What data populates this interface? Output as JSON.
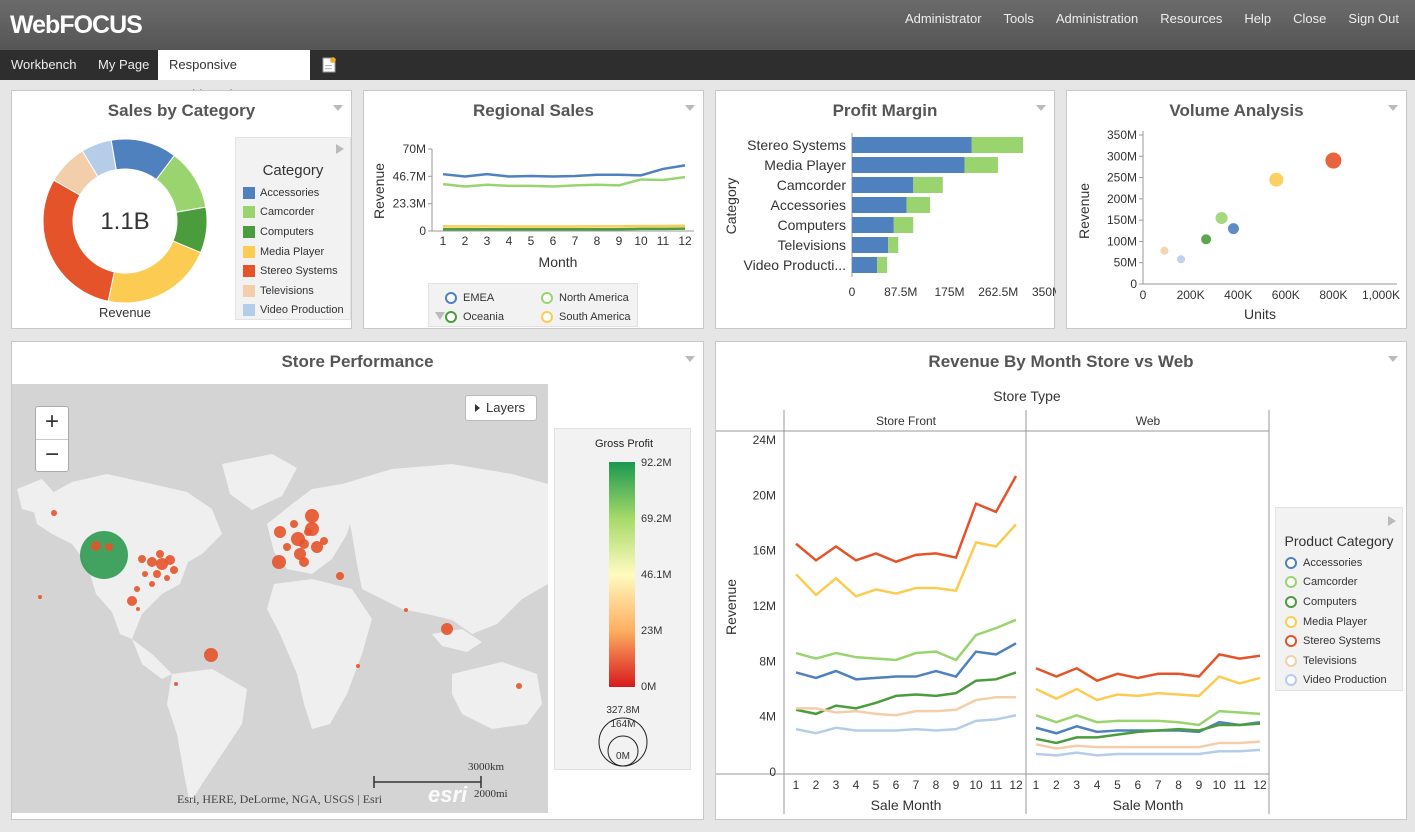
{
  "app": {
    "logo": "WebFOCUS",
    "nav": [
      "Administrator",
      "Tools",
      "Administration",
      "Resources",
      "Help",
      "Close",
      "Sign Out"
    ],
    "tabs": [
      "Workbench",
      "My Page",
      "Responsive Dashboard"
    ],
    "active_tab": 2
  },
  "sales_by_category": {
    "title": "Sales by Category",
    "center_value": "1.1B",
    "caption": "Revenue",
    "legend_title": "Category",
    "items": [
      {
        "label": "Accessories",
        "color": "#4e81bd",
        "share": 0.13
      },
      {
        "label": "Camcorder",
        "color": "#9ad46f",
        "share": 0.12
      },
      {
        "label": "Computers",
        "color": "#4a9c3c",
        "share": 0.09
      },
      {
        "label": "Media Player",
        "color": "#fccb52",
        "share": 0.22
      },
      {
        "label": "Stereo Systems",
        "color": "#e4532a",
        "share": 0.3
      },
      {
        "label": "Televisions",
        "color": "#f2cfaa",
        "share": 0.08
      },
      {
        "label": "Video Production",
        "color": "#b6cde9",
        "share": 0.06
      }
    ]
  },
  "regional_sales": {
    "title": "Regional Sales",
    "chart_data": {
      "type": "line",
      "xlabel": "Month",
      "ylabel": "Revenue",
      "x": [
        1,
        2,
        3,
        4,
        5,
        6,
        7,
        8,
        9,
        10,
        11,
        12
      ],
      "yticks": [
        "0",
        "23.3M",
        "46.7M",
        "70M"
      ],
      "ylim": [
        0,
        70
      ],
      "series": [
        {
          "name": "EMEA",
          "color": "#4e81bd",
          "values": [
            48.5,
            46.5,
            48.5,
            46.5,
            47,
            46.5,
            47,
            48,
            48,
            47.5,
            53,
            56
          ]
        },
        {
          "name": "North America",
          "color": "#9ad46f",
          "values": [
            40,
            38,
            39.5,
            38.5,
            38.5,
            38,
            39,
            39.5,
            39,
            44,
            43.5,
            46
          ]
        },
        {
          "name": "Oceania",
          "color": "#4a9c3c",
          "values": [
            1.5,
            1.5,
            1.5,
            1.5,
            1.5,
            1.5,
            1.5,
            1.5,
            1.5,
            1.8,
            1.8,
            2
          ]
        },
        {
          "name": "South America",
          "color": "#fccb52",
          "values": [
            4,
            3.8,
            4,
            3.8,
            3.8,
            3.8,
            3.8,
            3.9,
            3.9,
            4.2,
            4.3,
            4.5
          ]
        }
      ]
    }
  },
  "profit_margin": {
    "title": "Profit Margin",
    "chart_data": {
      "type": "bar",
      "ylabel": "Category",
      "xticks": [
        "0",
        "87.5M",
        "175M",
        "262.5M",
        "350M"
      ],
      "xlim": [
        0,
        350
      ],
      "categories": [
        "Stereo Systems",
        "Media Player",
        "Camcorder",
        "Accessories",
        "Computers",
        "Televisions",
        "Video Producti..."
      ],
      "series": [
        {
          "color": "#4e81bd",
          "values": [
            215,
            202,
            110,
            98,
            75,
            65,
            45
          ]
        },
        {
          "color": "#9ad46f",
          "values": [
            92,
            60,
            53,
            42,
            35,
            18,
            18
          ]
        }
      ]
    }
  },
  "volume_analysis": {
    "title": "Volume Analysis",
    "chart_data": {
      "type": "scatter",
      "xlabel": "Units",
      "ylabel": "Revenue",
      "xticks": [
        "0",
        "200K",
        "400K",
        "600K",
        "800K",
        "1,000K"
      ],
      "yticks": [
        "0",
        "50M",
        "100M",
        "150M",
        "200M",
        "250M",
        "300M",
        "350M"
      ],
      "xlim": [
        0,
        1000
      ],
      "ylim": [
        0,
        350
      ],
      "points": [
        {
          "x": 800,
          "y": 290,
          "color": "#e4532a",
          "r": 8
        },
        {
          "x": 560,
          "y": 245,
          "color": "#fccb52",
          "r": 7
        },
        {
          "x": 330,
          "y": 155,
          "color": "#9ad46f",
          "r": 6
        },
        {
          "x": 380,
          "y": 130,
          "color": "#4e81bd",
          "r": 5.5
        },
        {
          "x": 265,
          "y": 105,
          "color": "#4a9c3c",
          "r": 5
        },
        {
          "x": 90,
          "y": 78,
          "color": "#f2cfaa",
          "r": 4
        },
        {
          "x": 160,
          "y": 58,
          "color": "#b6cde9",
          "r": 4
        }
      ]
    }
  },
  "store_performance": {
    "title": "Store Performance",
    "layers_label": "Layers",
    "zoom_in": "+",
    "zoom_out": "−",
    "attribution": "Esri, HERE, DeLorme, NGA, USGS | Esri",
    "esri": "esri",
    "scale_km": "3000km",
    "scale_mi": "2000mi",
    "legend_title": "Gross Profit",
    "legend_ticks": [
      "92.2M",
      "69.2M",
      "46.1M",
      "23M",
      "0M"
    ],
    "size_legend": [
      "327.8M",
      "164M",
      "0M"
    ]
  },
  "revenue_by_month": {
    "title": "Revenue By Month Store vs Web",
    "chart_data": {
      "type": "line",
      "facet_title": "Store Type",
      "facets": [
        "Store Front",
        "Web"
      ],
      "xlabel": "Sale Month",
      "ylabel": "Revenue",
      "x": [
        1,
        2,
        3,
        4,
        5,
        6,
        7,
        8,
        9,
        10,
        11,
        12
      ],
      "yticks": [
        "0",
        "4M",
        "8M",
        "12M",
        "16M",
        "20M",
        "24M"
      ],
      "ylim": [
        0,
        24
      ],
      "legend_title": "Product Category",
      "series": [
        {
          "name": "Accessories",
          "color": "#4e81bd",
          "store": [
            7.2,
            6.8,
            7.3,
            6.7,
            6.8,
            6.9,
            6.9,
            7.3,
            6.9,
            8.7,
            8.5,
            9.3
          ],
          "web": [
            3.2,
            2.8,
            3.3,
            2.9,
            3,
            3,
            3,
            3,
            2.9,
            3.6,
            3.4,
            3.6
          ]
        },
        {
          "name": "Camcorder",
          "color": "#9ad46f",
          "store": [
            8.6,
            8.2,
            8.6,
            8.3,
            8.2,
            8.1,
            8.6,
            8.7,
            8.1,
            9.9,
            10.4,
            11
          ]
        },
        {
          "name": "Computers",
          "color": "#4a9c3c",
          "store": [
            4.5,
            4.2,
            4.8,
            4.6,
            5,
            5.5,
            5.6,
            5.5,
            5.7,
            6.6,
            6.7,
            7.2
          ],
          "web": [
            2.4,
            2.1,
            2.5,
            2.5,
            2.7,
            2.9,
            3,
            3.1,
            3,
            3.4,
            3.4,
            3.5
          ]
        },
        {
          "name": "Media Player",
          "color": "#fccb52",
          "store": [
            14.3,
            12.8,
            14,
            12.7,
            13.2,
            12.9,
            13.3,
            13.3,
            13.1,
            16.6,
            16.3,
            17.9
          ],
          "web": [
            6,
            5.3,
            6,
            5.2,
            5.6,
            5.5,
            5.7,
            5.6,
            5.5,
            6.9,
            6.4,
            6.8
          ]
        },
        {
          "name": "Stereo Systems",
          "color": "#e4532a",
          "store": [
            16.5,
            15.3,
            16.3,
            15.3,
            15.8,
            15.2,
            15.7,
            15.8,
            15.5,
            19.4,
            18.8,
            21.4
          ],
          "web": [
            7.5,
            6.9,
            7.5,
            6.6,
            7.1,
            6.8,
            7.1,
            7.1,
            6.9,
            8.5,
            8.2,
            8.4
          ]
        },
        {
          "name": "Televisions",
          "color": "#f2cfaa",
          "store": [
            4.6,
            4.6,
            4.3,
            4.4,
            4.2,
            4.1,
            4.4,
            4.4,
            4.5,
            5.2,
            5.4,
            5.4
          ],
          "web": [
            2,
            1.7,
            1.9,
            1.8,
            1.8,
            1.8,
            1.8,
            1.8,
            1.8,
            2.1,
            2.1,
            2.2
          ]
        },
        {
          "name": "Video Production",
          "color": "#b6cde9",
          "store": [
            3.1,
            2.8,
            3.2,
            3,
            3,
            3,
            3.1,
            3,
            3.1,
            3.7,
            3.8,
            4.1
          ],
          "web": [
            1.3,
            1.2,
            1.4,
            1.2,
            1.3,
            1.3,
            1.3,
            1.3,
            1.3,
            1.5,
            1.5,
            1.6
          ]
        }
      ],
      "web_camcorder": [
        4.1,
        3.6,
        4.1,
        3.6,
        3.7,
        3.7,
        3.7,
        3.6,
        3.4,
        4.4,
        4.3,
        4.2
      ]
    }
  },
  "colors": {
    "topbar": "#5f5f5f",
    "tabbar": "#2e2e2e",
    "background": "#e6e6e6"
  }
}
